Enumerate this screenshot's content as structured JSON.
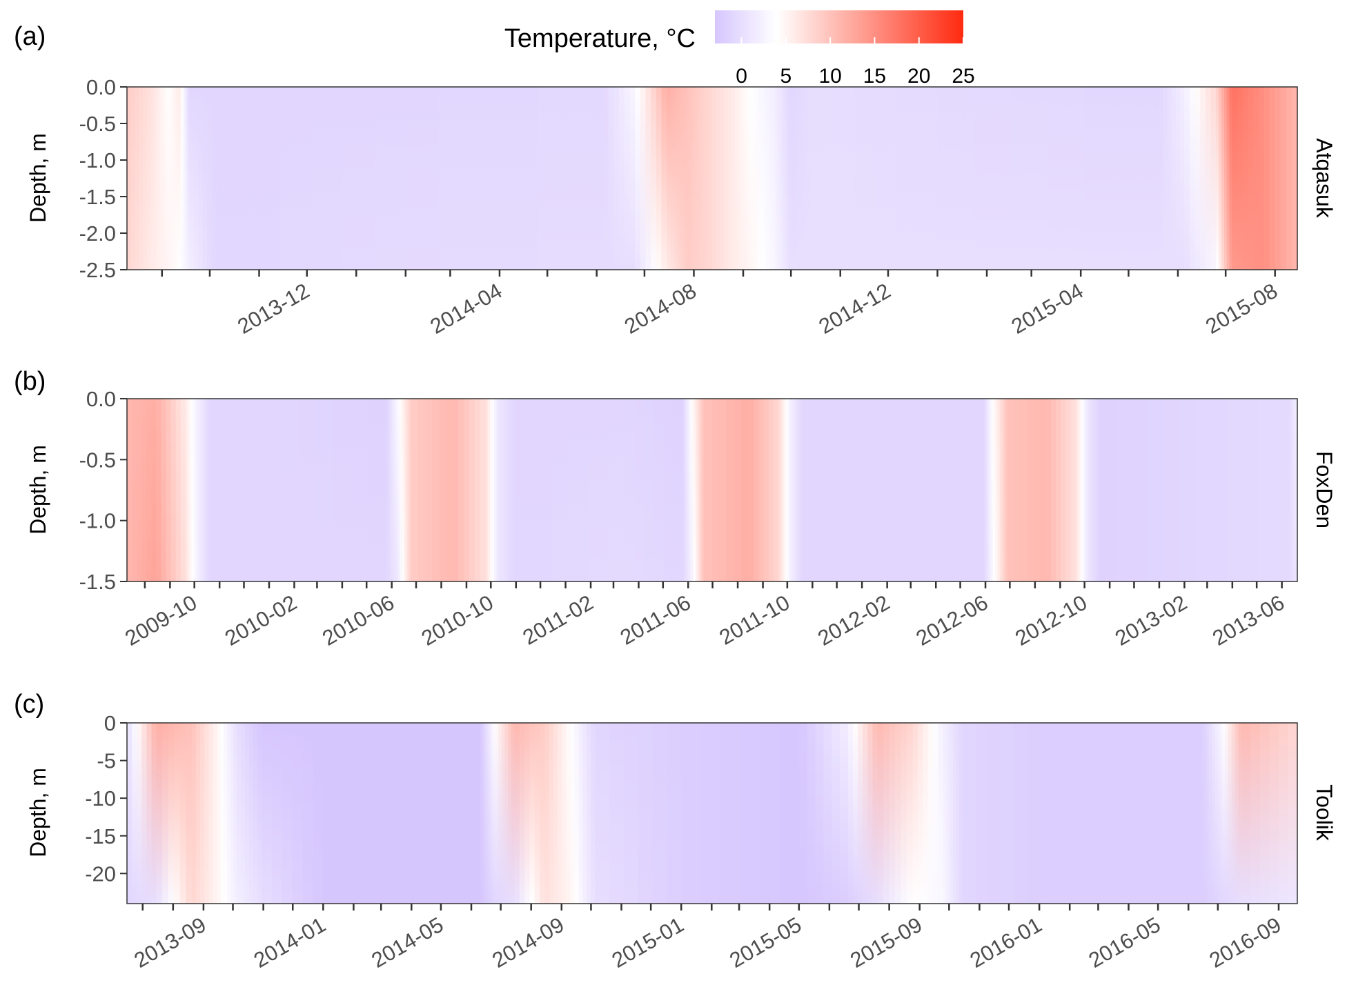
{
  "legend": {
    "title": "Temperature, °C",
    "range": [
      -3,
      25
    ],
    "ticks": [
      0,
      5,
      10,
      15,
      20,
      25
    ],
    "tick_labels": [
      "0",
      "5",
      "10",
      "15",
      "20",
      "25"
    ],
    "colors": {
      "cold": "#d6c6fe",
      "neutral": "#ffffff",
      "warm": "#ff2a10"
    }
  },
  "chart_data": [
    {
      "type": "heatmap",
      "panel_label": "(a)",
      "facet_label": "Atqasuk",
      "ylabel": "Depth, m",
      "ylim": [
        -2.5,
        0.0
      ],
      "yticks": [
        0.0,
        -0.5,
        -1.0,
        -1.5,
        -2.0,
        -2.5
      ],
      "ytick_labels": [
        "0.0",
        "-0.5",
        "-1.0",
        "-1.5",
        "-2.0",
        "-2.5"
      ],
      "xlim": [
        "2013-08-10",
        "2015-08-15"
      ],
      "xticks": [
        "2013-12",
        "2014-04",
        "2014-08",
        "2014-12",
        "2015-04",
        "2015-08"
      ],
      "minor_ticks": [
        "2013-09",
        "2013-10",
        "2013-11",
        "2013-12",
        "2014-01",
        "2014-02",
        "2014-03",
        "2014-04",
        "2014-05",
        "2014-06",
        "2014-07",
        "2014-08",
        "2014-09",
        "2014-10",
        "2014-11",
        "2014-12",
        "2015-01",
        "2015-02",
        "2015-03",
        "2015-04",
        "2015-05",
        "2015-06",
        "2015-07",
        "2015-08"
      ],
      "temperature_profile": [
        {
          "date": "2013-08-10",
          "surface": 9,
          "bottom": 8
        },
        {
          "date": "2013-08-25",
          "surface": 7,
          "bottom": 6
        },
        {
          "date": "2013-09-05",
          "surface": 4,
          "bottom": 5
        },
        {
          "date": "2013-09-12",
          "surface": 6,
          "bottom": 4
        },
        {
          "date": "2013-09-18",
          "surface": -1,
          "bottom": 2
        },
        {
          "date": "2013-10-05",
          "surface": -1,
          "bottom": -1
        },
        {
          "date": "2014-02-01",
          "surface": -1,
          "bottom": -0.5
        },
        {
          "date": "2014-06-05",
          "surface": -0.8,
          "bottom": -0.3
        },
        {
          "date": "2014-06-25",
          "surface": 3,
          "bottom": 0
        },
        {
          "date": "2014-07-15",
          "surface": 12,
          "bottom": 6
        },
        {
          "date": "2014-07-28",
          "surface": 10,
          "bottom": 9
        },
        {
          "date": "2014-08-10",
          "surface": 8,
          "bottom": 8
        },
        {
          "date": "2014-08-25",
          "surface": 6,
          "bottom": 6
        },
        {
          "date": "2014-09-05",
          "surface": 4,
          "bottom": 5
        },
        {
          "date": "2014-09-20",
          "surface": 2,
          "bottom": 3
        },
        {
          "date": "2014-10-01",
          "surface": -1,
          "bottom": 0
        },
        {
          "date": "2014-10-15",
          "surface": 0,
          "bottom": 0
        },
        {
          "date": "2015-01-01",
          "surface": -0.5,
          "bottom": 0
        },
        {
          "date": "2015-05-20",
          "surface": -1,
          "bottom": 0
        },
        {
          "date": "2015-06-05",
          "surface": 2,
          "bottom": 0
        },
        {
          "date": "2015-06-25",
          "surface": 8,
          "bottom": 3
        },
        {
          "date": "2015-07-05",
          "surface": 18,
          "bottom": 14
        },
        {
          "date": "2015-07-25",
          "surface": 15,
          "bottom": 15
        },
        {
          "date": "2015-08-15",
          "surface": 11,
          "bottom": 11
        }
      ]
    },
    {
      "type": "heatmap",
      "panel_label": "(b)",
      "facet_label": "FoxDen",
      "ylabel": "Depth, m",
      "ylim": [
        -1.5,
        0.0
      ],
      "yticks": [
        0.0,
        -0.5,
        -1.0,
        -1.5
      ],
      "ytick_labels": [
        "0.0",
        "-0.5",
        "-1.0",
        "-1.5"
      ],
      "xlim": [
        "2009-07-10",
        "2013-06-20"
      ],
      "xticks": [
        "2009-10",
        "2010-02",
        "2010-06",
        "2010-10",
        "2011-02",
        "2011-06",
        "2011-10",
        "2012-02",
        "2012-06",
        "2012-10",
        "2013-02",
        "2013-06"
      ],
      "minor_ticks": [
        "2009-08",
        "2009-09",
        "2009-10",
        "2009-11",
        "2009-12",
        "2010-01",
        "2010-02",
        "2010-03",
        "2010-04",
        "2010-05",
        "2010-06",
        "2010-07",
        "2010-08",
        "2010-09",
        "2010-10",
        "2010-11",
        "2010-12",
        "2011-01",
        "2011-02",
        "2011-03",
        "2011-04",
        "2011-05",
        "2011-06",
        "2011-07",
        "2011-08",
        "2011-09",
        "2011-10",
        "2011-11",
        "2011-12",
        "2012-01",
        "2012-02",
        "2012-03",
        "2012-04",
        "2012-05",
        "2012-06",
        "2012-07",
        "2012-08",
        "2012-09",
        "2012-10",
        "2012-11",
        "2012-12",
        "2013-01",
        "2013-02",
        "2013-03",
        "2013-04",
        "2013-05",
        "2013-06"
      ],
      "temperature_profile": [
        {
          "date": "2009-07-10",
          "surface": 11,
          "bottom": 11
        },
        {
          "date": "2009-08-15",
          "surface": 12,
          "bottom": 13
        },
        {
          "date": "2009-09-20",
          "surface": 6,
          "bottom": 7
        },
        {
          "date": "2009-10-05",
          "surface": 2,
          "bottom": 2
        },
        {
          "date": "2009-10-20",
          "surface": -1,
          "bottom": -1
        },
        {
          "date": "2010-01-15",
          "surface": -1,
          "bottom": -1
        },
        {
          "date": "2010-05-25",
          "surface": -1.5,
          "bottom": -1
        },
        {
          "date": "2010-06-08",
          "surface": 3,
          "bottom": 1
        },
        {
          "date": "2010-06-25",
          "surface": 9,
          "bottom": 9
        },
        {
          "date": "2010-08-15",
          "surface": 11,
          "bottom": 11
        },
        {
          "date": "2010-09-25",
          "surface": 7,
          "bottom": 7
        },
        {
          "date": "2010-10-10",
          "surface": 1,
          "bottom": 1
        },
        {
          "date": "2010-10-30",
          "surface": -1,
          "bottom": -1
        },
        {
          "date": "2011-03-15",
          "surface": -1,
          "bottom": -0.5
        },
        {
          "date": "2011-05-25",
          "surface": -1.5,
          "bottom": -1
        },
        {
          "date": "2011-06-05",
          "surface": 4,
          "bottom": 2
        },
        {
          "date": "2011-06-20",
          "surface": 10,
          "bottom": 10
        },
        {
          "date": "2011-08-15",
          "surface": 12,
          "bottom": 12
        },
        {
          "date": "2011-09-20",
          "surface": 8,
          "bottom": 8
        },
        {
          "date": "2011-10-05",
          "surface": 2,
          "bottom": 2
        },
        {
          "date": "2011-10-20",
          "surface": -1,
          "bottom": -1
        },
        {
          "date": "2012-02-15",
          "surface": -1,
          "bottom": -1
        },
        {
          "date": "2012-05-30",
          "surface": -1,
          "bottom": -1
        },
        {
          "date": "2012-06-10",
          "surface": 4,
          "bottom": 3
        },
        {
          "date": "2012-06-28",
          "surface": 10,
          "bottom": 10
        },
        {
          "date": "2012-08-15",
          "surface": 11,
          "bottom": 11
        },
        {
          "date": "2012-09-20",
          "surface": 7,
          "bottom": 7
        },
        {
          "date": "2012-10-05",
          "surface": 1,
          "bottom": 1
        },
        {
          "date": "2012-10-20",
          "surface": -1.5,
          "bottom": -1.5
        },
        {
          "date": "2013-02-15",
          "surface": -1,
          "bottom": -1
        },
        {
          "date": "2013-06-10",
          "surface": -0.5,
          "bottom": -0.5
        },
        {
          "date": "2013-06-20",
          "surface": 2,
          "bottom": 1
        }
      ]
    },
    {
      "type": "heatmap",
      "panel_label": "(c)",
      "facet_label": "Toolik",
      "ylabel": "Depth, m",
      "ylim": [
        -24,
        0
      ],
      "yticks": [
        0,
        -5,
        -10,
        -15,
        -20
      ],
      "ytick_labels": [
        "0",
        "-5",
        "-10",
        "-15",
        "-20"
      ],
      "xlim": [
        "2013-06-15",
        "2016-09-20"
      ],
      "xticks": [
        "2013-09",
        "2014-01",
        "2014-05",
        "2014-09",
        "2015-01",
        "2015-05",
        "2015-09",
        "2016-01",
        "2016-05",
        "2016-09"
      ],
      "minor_ticks": [
        "2013-07",
        "2013-08",
        "2013-09",
        "2013-10",
        "2013-11",
        "2013-12",
        "2014-01",
        "2014-02",
        "2014-03",
        "2014-04",
        "2014-05",
        "2014-06",
        "2014-07",
        "2014-08",
        "2014-09",
        "2014-10",
        "2014-11",
        "2014-12",
        "2015-01",
        "2015-02",
        "2015-03",
        "2015-04",
        "2015-05",
        "2015-06",
        "2015-07",
        "2015-08",
        "2015-09",
        "2015-10",
        "2015-11",
        "2015-12",
        "2016-01",
        "2016-02",
        "2016-03",
        "2016-04",
        "2016-05",
        "2016-06",
        "2016-07",
        "2016-08",
        "2016-09"
      ],
      "temperature_profile": [
        {
          "date": "2013-06-15",
          "surface": 0,
          "bottom": -1
        },
        {
          "date": "2013-07-15",
          "surface": 12,
          "bottom": 0
        },
        {
          "date": "2013-08-20",
          "surface": 10,
          "bottom": 8
        },
        {
          "date": "2013-09-15",
          "surface": 5,
          "bottom": 5
        },
        {
          "date": "2013-10-05",
          "surface": 0,
          "bottom": 2
        },
        {
          "date": "2013-10-30",
          "surface": -3,
          "bottom": 0
        },
        {
          "date": "2014-01-01",
          "surface": -3,
          "bottom": -3
        },
        {
          "date": "2014-06-10",
          "surface": -3,
          "bottom": -3
        },
        {
          "date": "2014-06-25",
          "surface": 4,
          "bottom": -1
        },
        {
          "date": "2014-07-15",
          "surface": 11,
          "bottom": 0
        },
        {
          "date": "2014-08-15",
          "surface": 9,
          "bottom": 7
        },
        {
          "date": "2014-09-10",
          "surface": 4,
          "bottom": 5
        },
        {
          "date": "2014-10-05",
          "surface": -1,
          "bottom": 0
        },
        {
          "date": "2015-01-01",
          "surface": -2,
          "bottom": -2
        },
        {
          "date": "2015-05-01",
          "surface": -3,
          "bottom": -3
        },
        {
          "date": "2015-06-20",
          "surface": 2,
          "bottom": -2
        },
        {
          "date": "2015-07-20",
          "surface": 11,
          "bottom": 0
        },
        {
          "date": "2015-08-25",
          "surface": 8,
          "bottom": 4
        },
        {
          "date": "2015-09-25",
          "surface": 2,
          "bottom": 3
        },
        {
          "date": "2015-10-15",
          "surface": -1,
          "bottom": -1
        },
        {
          "date": "2016-01-01",
          "surface": -2,
          "bottom": -2
        },
        {
          "date": "2016-06-15",
          "surface": -2,
          "bottom": -2
        },
        {
          "date": "2016-07-05",
          "surface": 3,
          "bottom": -1
        },
        {
          "date": "2016-07-25",
          "surface": 11,
          "bottom": 0
        },
        {
          "date": "2016-09-20",
          "surface": 8,
          "bottom": 1
        }
      ]
    }
  ]
}
